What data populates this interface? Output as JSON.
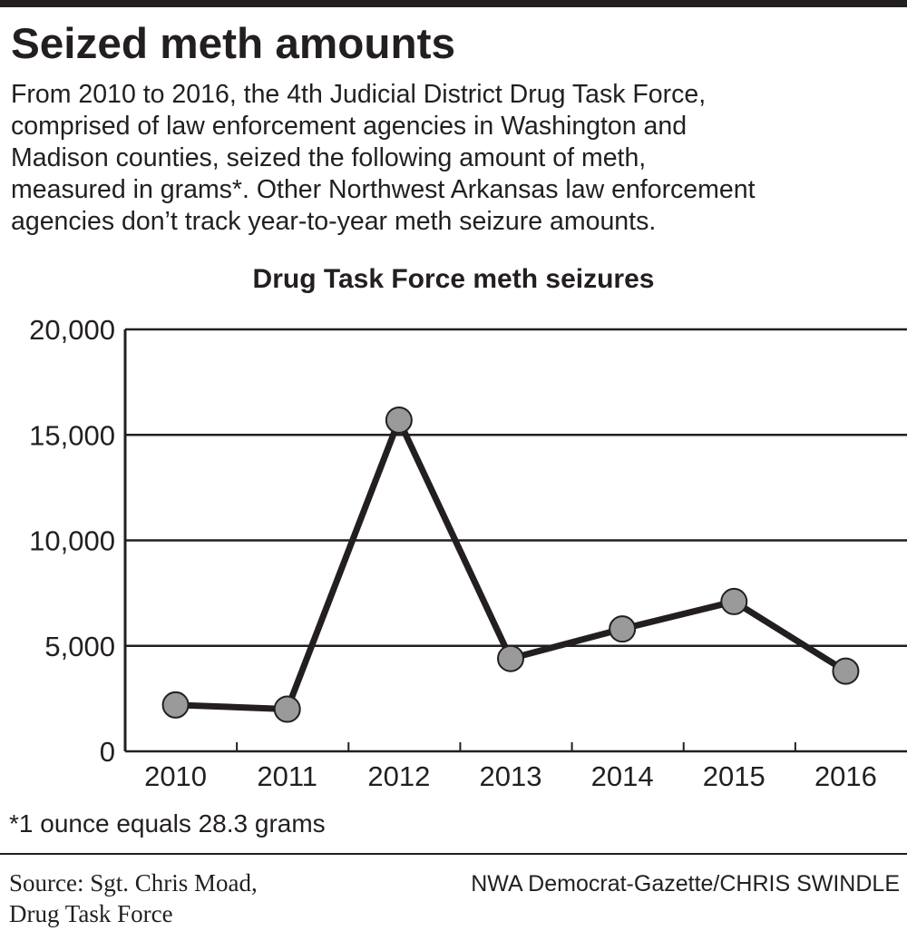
{
  "headline": "Seized meth amounts",
  "description_lines": [
    "From 2010 to 2016, the 4th Judicial District Drug Task Force,",
    "comprised of law enforcement agencies in Washington and",
    "Madison counties, seized the following amount of meth,",
    "measured in grams*. Other Northwest Arkansas law enforcement",
    "agencies don’t track year-to-year meth seizure amounts."
  ],
  "chart_data": {
    "type": "line",
    "title": "Drug Task Force meth seizures",
    "categories": [
      "2010",
      "2011",
      "2012",
      "2013",
      "2014",
      "2015",
      "2016"
    ],
    "values": [
      2200,
      2000,
      15700,
      4400,
      5800,
      7100,
      3800
    ],
    "color": "#231f20",
    "marker_color": "#9a9a9a",
    "ylim": [
      0,
      20000
    ],
    "yticks": [
      0,
      {
        "value": 5000,
        "label": "5,000"
      },
      {
        "value": 10000,
        "label": "10,000"
      },
      {
        "value": 15000,
        "label": "15,000"
      },
      {
        "value": 20000,
        "label": "20,000"
      }
    ],
    "grid": true
  },
  "footnote": "*1 ounce equals 28.3 grams",
  "source_lines": [
    "Source: Sgt. Chris Moad,",
    "Drug Task Force"
  ],
  "credit": "NWA Democrat-Gazette/CHRIS SWINDLE"
}
